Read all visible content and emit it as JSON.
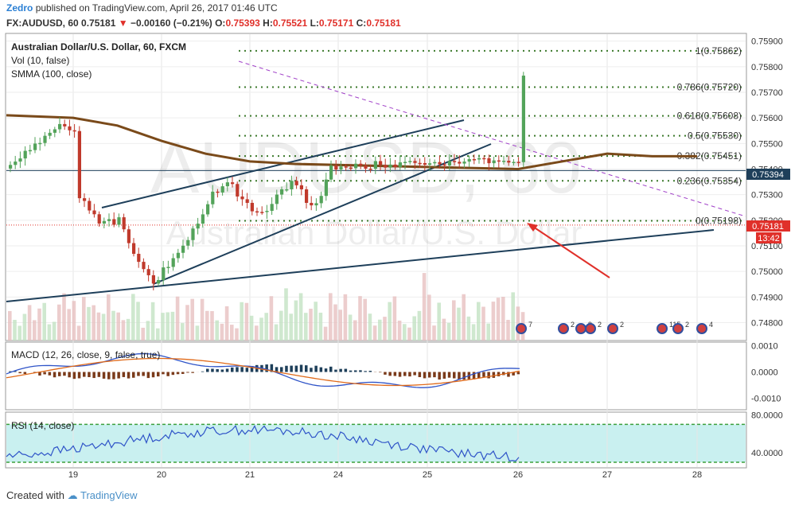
{
  "header": {
    "author": "Zedro",
    "published_text": "published on TradingView.com, April 26, 2017 01:46 UTC",
    "symbol": "FX:AUDUSD, 60",
    "last": "0.75181",
    "change": "−0.00160 (−0.21%)",
    "open_label": "O:",
    "open": "0.75393",
    "high_label": "H:",
    "high": "0.75521",
    "low_label": "L:",
    "low": "0.75171",
    "close_label": "C:",
    "close": "0.75181"
  },
  "legend": {
    "title": "Australian Dollar/U.S. Dollar, 60, FXCM",
    "vol": "Vol (10, false)",
    "smma": "SMMA (100, close)",
    "macd": "MACD (12, 26, close, 9, false, true)",
    "rsi": "RSI (14, close)"
  },
  "watermark": {
    "symbol": "AUDUSD, 60",
    "name": "Australian Dollar/U.S. Dollar"
  },
  "price_tags": {
    "current": "0.75394",
    "last": "0.75181",
    "countdown": "13:42"
  },
  "footer": {
    "created_with": "Created with",
    "brand": "TradingView"
  },
  "colors": {
    "up": "#53a35a",
    "down": "#c0392b",
    "smma": "#7a4a1a",
    "fib": "#3c7a2c",
    "trend": "#1e3f5a",
    "arrow": "#e0302a",
    "macd": "#2f54c8",
    "signal": "#e06a1a",
    "rsi": "#2f54c8",
    "rsi_band": "#c9f0f0"
  },
  "chart_data": [
    {
      "type": "candlestick",
      "title": "Australian Dollar/U.S. Dollar, 60, FXCM",
      "x_ticks": [
        "19",
        "20",
        "21",
        "24",
        "25",
        "26",
        "27",
        "28"
      ],
      "y_ticks": [
        "0.75900",
        "0.75800",
        "0.75700",
        "0.75600",
        "0.75500",
        "0.75400",
        "0.75300",
        "0.75200",
        "0.75100",
        "0.75000",
        "0.74900",
        "0.74800"
      ],
      "ylim": [
        0.7473,
        0.7593
      ],
      "fibonacci": [
        {
          "level": "1",
          "price": 0.75862
        },
        {
          "level": "0.786",
          "price": 0.7572
        },
        {
          "level": "0.618",
          "price": 0.75608
        },
        {
          "level": "0.5",
          "price": 0.7553
        },
        {
          "level": "0.382",
          "price": 0.75451
        },
        {
          "level": "0.236",
          "price": 0.75354
        },
        {
          "level": "0",
          "price": 0.75198
        }
      ],
      "smma_100": [
        {
          "day": 18.28,
          "price": 0.7561
        },
        {
          "day": 19.0,
          "price": 0.756
        },
        {
          "day": 19.5,
          "price": 0.7557
        },
        {
          "day": 20.0,
          "price": 0.7551
        },
        {
          "day": 20.5,
          "price": 0.7546
        },
        {
          "day": 21.0,
          "price": 0.7543
        },
        {
          "day": 21.5,
          "price": 0.7542
        },
        {
          "day": 24.0,
          "price": 0.754
        },
        {
          "day": 24.5,
          "price": 0.7543
        },
        {
          "day": 25.0,
          "price": 0.7546
        },
        {
          "day": 25.5,
          "price": 0.7545
        },
        {
          "day": 26.0,
          "price": 0.7545
        }
      ],
      "price_path": [
        {
          "day": 18.3,
          "price": 0.754
        },
        {
          "day": 18.6,
          "price": 0.7551
        },
        {
          "day": 18.8,
          "price": 0.7557
        },
        {
          "day": 19.0,
          "price": 0.7556
        },
        {
          "day": 19.05,
          "price": 0.753
        },
        {
          "day": 19.3,
          "price": 0.7518
        },
        {
          "day": 19.5,
          "price": 0.752
        },
        {
          "day": 19.7,
          "price": 0.7503
        },
        {
          "day": 19.9,
          "price": 0.7496
        },
        {
          "day": 20.1,
          "price": 0.7505
        },
        {
          "day": 20.3,
          "price": 0.7513
        },
        {
          "day": 20.5,
          "price": 0.7527
        },
        {
          "day": 20.7,
          "price": 0.7536
        },
        {
          "day": 20.9,
          "price": 0.7528
        },
        {
          "day": 21.1,
          "price": 0.7521
        },
        {
          "day": 21.3,
          "price": 0.7531
        },
        {
          "day": 21.5,
          "price": 0.7535
        },
        {
          "day": 21.7,
          "price": 0.7523
        },
        {
          "day": 21.9,
          "price": 0.7541
        },
        {
          "day": 22.0,
          "price": 0.7544
        },
        {
          "day": 22.02,
          "price": 0.7578
        },
        {
          "day": 22.2,
          "price": 0.7566
        },
        {
          "day": 22.5,
          "price": 0.7575
        },
        {
          "day": 22.7,
          "price": 0.7571
        },
        {
          "day": 23.0,
          "price": 0.7566
        },
        {
          "day": 23.2,
          "price": 0.7565
        },
        {
          "day": 23.4,
          "price": 0.7558
        },
        {
          "day": 23.6,
          "price": 0.7544
        },
        {
          "day": 23.8,
          "price": 0.754
        },
        {
          "day": 24.0,
          "price": 0.7536
        },
        {
          "day": 24.2,
          "price": 0.7525
        },
        {
          "day": 24.4,
          "price": 0.7534
        },
        {
          "day": 24.7,
          "price": 0.7532
        },
        {
          "day": 24.9,
          "price": 0.7538
        },
        {
          "day": 24.95,
          "price": 0.7539
        },
        {
          "day": 25.0,
          "price": 0.7518
        }
      ],
      "day_axis": "custom: data day 22+ represents trading day after weekend (24, 25, 26)"
    },
    {
      "type": "line",
      "title": "MACD (12, 26, close, 9, false, true)",
      "y_ticks": [
        "0.0010",
        "0.0000",
        "-0.0010"
      ],
      "ylim": [
        -0.0014,
        0.0011
      ]
    },
    {
      "type": "line",
      "title": "RSI (14, close)",
      "y_ticks": [
        "80.0000",
        "40.0000"
      ],
      "ylim": [
        25,
        82
      ],
      "band": [
        30,
        70
      ]
    }
  ]
}
